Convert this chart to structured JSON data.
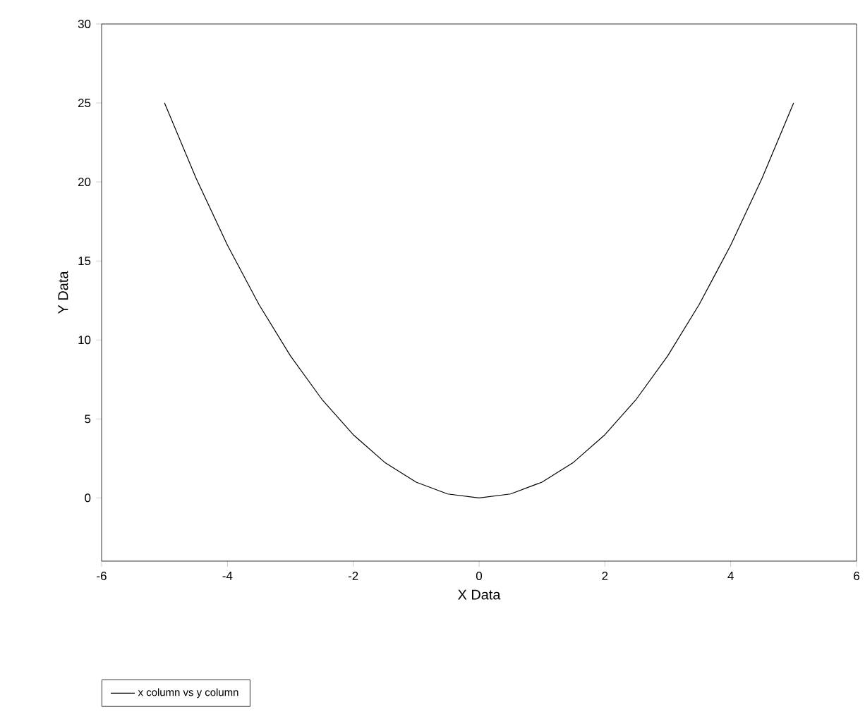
{
  "chart_data": {
    "type": "line",
    "xlabel": "X Data",
    "ylabel": "Y Data",
    "xlim": [
      -6,
      6
    ],
    "xticks": [
      -6,
      -4,
      -2,
      0,
      2,
      4,
      6
    ],
    "ylim": [
      -4,
      30
    ],
    "yticks": [
      0,
      5,
      10,
      15,
      20,
      25,
      30
    ],
    "grid": false,
    "legend": "bottom left",
    "marker": "none",
    "line_style": "solid",
    "series": [
      {
        "name": "x column vs y column",
        "color": "#000000",
        "x": [
          -5,
          -4.5,
          -4,
          -3.5,
          -3,
          -2.5,
          -2,
          -1.5,
          -1,
          -0.5,
          0,
          0.5,
          1,
          1.5,
          2,
          2.5,
          3,
          3.5,
          4,
          4.5,
          5
        ],
        "values": [
          25,
          20.25,
          16,
          12.25,
          9,
          6.25,
          4,
          2.25,
          1,
          0.25,
          0,
          0.25,
          1,
          2.25,
          4,
          6.25,
          9,
          12.25,
          16,
          20.25,
          25
        ]
      }
    ]
  }
}
